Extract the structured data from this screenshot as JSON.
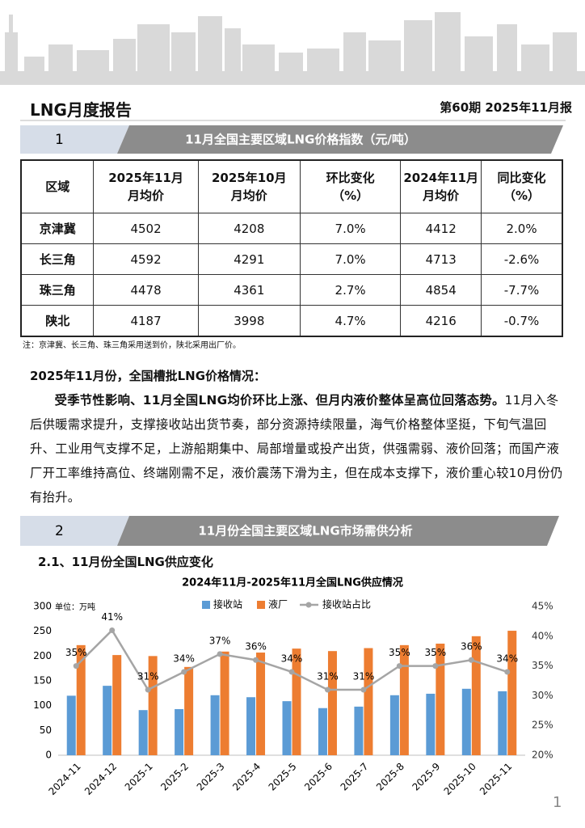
{
  "header": {
    "title": "LNG月度报告",
    "issue": "第60期  2025年11月报"
  },
  "section1": {
    "number": "1",
    "title": "11月全国主要区域LNG价格指数（元/吨）"
  },
  "table": {
    "header": [
      [
        "区域"
      ],
      [
        "2025年11月",
        "月均价"
      ],
      [
        "2025年10月",
        "月均价"
      ],
      [
        "环比变化",
        "（%）"
      ],
      [
        "2024年11月",
        "月均价"
      ],
      [
        "同比变化",
        "（%）"
      ]
    ],
    "rows": [
      [
        "京津冀",
        "4502",
        "4208",
        "7.0%",
        "4412",
        "2.0%"
      ],
      [
        "长三角",
        "4592",
        "4291",
        "7.0%",
        "4713",
        "-2.6%"
      ],
      [
        "珠三角",
        "4478",
        "4361",
        "2.7%",
        "4854",
        "-7.7%"
      ],
      [
        "陕北",
        "4187",
        "3998",
        "4.7%",
        "4216",
        "-0.7%"
      ]
    ]
  },
  "note": "注：京津冀、长三角、珠三角采用送到价，陕北采用出厂价。",
  "summary": {
    "heading": "2025年11月份，全国槽批LNG价格情况：",
    "lead": "受季节性影响、11月全国LNG均价环比上涨、但月内液价整体呈高位回落态势。",
    "body": "11月入冬后供暖需求提升，支撑接收站出货节奏，部分资源持续限量，海气价格整体坚挺，下旬气温回升、工业用气支撑不足，上游船期集中、局部增量或投产出货，供强需弱、液价回落；而国产液厂开工率维持高位、终端刚需不足，液价震荡下滑为主，但在成本支撑下，液价重心较10月份仍有抬升。"
  },
  "section2": {
    "number": "2",
    "title": "11月份全国主要区域LNG市场需供分析"
  },
  "subsection": "2.1、11月份全国LNG供应变化",
  "chart_data": {
    "type": "bar",
    "title": "2024年11月-2025年11月全国LNG供应情况",
    "unit": "单位：万吨",
    "categories": [
      "2024-11",
      "2024-12",
      "2025-1",
      "2025-2",
      "2025-3",
      "2025-4",
      "2025-5",
      "2025-6",
      "2025-7",
      "2025-8",
      "2025-9",
      "2025-10",
      "2025-11"
    ],
    "series": [
      {
        "name": "接收站",
        "type": "bar",
        "color": "#5b9bd5",
        "values": [
          120,
          140,
          91,
          93,
          121,
          117,
          109,
          95,
          98,
          121,
          124,
          134,
          129
        ]
      },
      {
        "name": "液厂",
        "type": "bar",
        "color": "#ed7d31",
        "values": [
          222,
          202,
          200,
          178,
          209,
          207,
          215,
          210,
          216,
          222,
          225,
          240,
          251
        ]
      },
      {
        "name": "接收站占比",
        "type": "line",
        "axis": "y2",
        "color": "#a5a5a5",
        "values": [
          35,
          41,
          31,
          34,
          37,
          36,
          34,
          31,
          31,
          35,
          35,
          36,
          34
        ],
        "value_labels": [
          "35%",
          "41%",
          "31%",
          "34%",
          "37%",
          "36%",
          "34%",
          "31%",
          "31%",
          "35%",
          "35%",
          "36%",
          "34%"
        ]
      }
    ],
    "ylim": [
      0,
      300
    ],
    "yticks": [
      0,
      50,
      100,
      150,
      200,
      250,
      300
    ],
    "y2lim": [
      20,
      45
    ],
    "y2ticks": [
      {
        "value": 20,
        "label": "20%"
      },
      {
        "value": 25,
        "label": "25%"
      },
      {
        "value": 30,
        "label": "30%"
      },
      {
        "value": 35,
        "label": "35%"
      },
      {
        "value": 40,
        "label": "40%"
      },
      {
        "value": 45,
        "label": "45%"
      }
    ],
    "grid": false,
    "legend": "top"
  },
  "page_number": "1"
}
